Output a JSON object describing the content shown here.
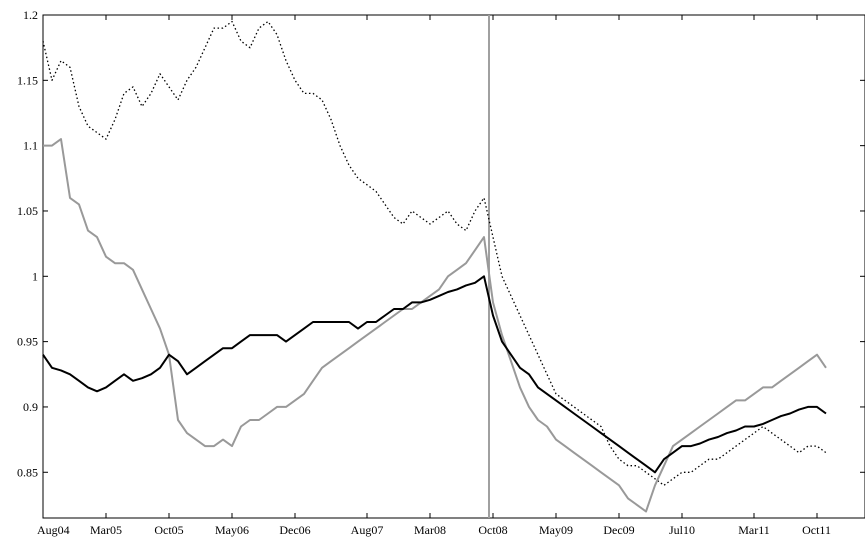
{
  "chart_data": {
    "type": "line",
    "title": "",
    "xlabel": "",
    "ylabel": "",
    "x_ticks": [
      "Aug04",
      "Mar05",
      "Oct05",
      "May06",
      "Dec06",
      "Aug07",
      "Mar08",
      "Oct08",
      "May09",
      "Dec09",
      "Jul10",
      "Mar11",
      "Oct11"
    ],
    "y_ticks": [
      "0.85",
      "0.9",
      "0.95",
      "1",
      "1.05",
      "1.1",
      "1.15",
      "1.2"
    ],
    "ylim": [
      0.815,
      1.2
    ],
    "grid": false,
    "legend": "none",
    "vertical_marker": {
      "x": "Sep08",
      "color": "#a0a0a0"
    },
    "series": [
      {
        "style": "dotted",
        "color": "#000000",
        "x": [
          "Aug04",
          "Sep04",
          "Oct04",
          "Nov04",
          "Dec04",
          "Jan05",
          "Feb05",
          "Mar05",
          "Apr05",
          "May05",
          "Jun05",
          "Jul05",
          "Aug05",
          "Sep05",
          "Oct05",
          "Nov05",
          "Dec05",
          "Jan06",
          "Feb06",
          "Mar06",
          "Apr06",
          "May06",
          "Jun06",
          "Jul06",
          "Aug06",
          "Sep06",
          "Oct06",
          "Nov06",
          "Dec06",
          "Jan07",
          "Feb07",
          "Mar07",
          "Apr07",
          "May07",
          "Jun07",
          "Jul07",
          "Aug07",
          "Sep07",
          "Oct07",
          "Nov07",
          "Dec07",
          "Jan08",
          "Feb08",
          "Mar08",
          "Apr08",
          "May08",
          "Jun08",
          "Jul08",
          "Aug08",
          "Sep08",
          "Oct08",
          "Nov08",
          "Dec08",
          "Jan09",
          "Feb09",
          "Mar09",
          "Apr09",
          "May09",
          "Jun09",
          "Jul09",
          "Aug09",
          "Sep09",
          "Oct09",
          "Nov09",
          "Dec09",
          "Jan10",
          "Feb10",
          "Mar10",
          "Apr10",
          "May10",
          "Jun10",
          "Jul10",
          "Aug10",
          "Sep10",
          "Oct10",
          "Nov10",
          "Dec10",
          "Jan11",
          "Feb11",
          "Mar11",
          "Apr11",
          "May11",
          "Jun11",
          "Jul11",
          "Aug11",
          "Sep11",
          "Oct11",
          "Nov11"
        ],
        "y": [
          1.18,
          1.15,
          1.165,
          1.16,
          1.13,
          1.115,
          1.11,
          1.105,
          1.12,
          1.14,
          1.145,
          1.13,
          1.14,
          1.155,
          1.145,
          1.135,
          1.15,
          1.16,
          1.175,
          1.19,
          1.19,
          1.195,
          1.18,
          1.175,
          1.19,
          1.195,
          1.185,
          1.165,
          1.15,
          1.14,
          1.14,
          1.135,
          1.12,
          1.1,
          1.085,
          1.075,
          1.07,
          1.065,
          1.055,
          1.045,
          1.04,
          1.05,
          1.045,
          1.04,
          1.045,
          1.05,
          1.04,
          1.035,
          1.05,
          1.06,
          1.03,
          1.0,
          0.985,
          0.97,
          0.955,
          0.94,
          0.925,
          0.91,
          0.905,
          0.9,
          0.895,
          0.89,
          0.885,
          0.87,
          0.86,
          0.855,
          0.855,
          0.85,
          0.845,
          0.84,
          0.845,
          0.85,
          0.85,
          0.855,
          0.86,
          0.86,
          0.865,
          0.87,
          0.875,
          0.88,
          0.885,
          0.88,
          0.875,
          0.87,
          0.865,
          0.87,
          0.87,
          0.865
        ]
      },
      {
        "style": "solid",
        "color": "#999999",
        "x": [
          "Aug04",
          "Sep04",
          "Oct04",
          "Nov04",
          "Dec04",
          "Jan05",
          "Feb05",
          "Mar05",
          "Apr05",
          "May05",
          "Jun05",
          "Jul05",
          "Aug05",
          "Sep05",
          "Oct05",
          "Nov05",
          "Dec05",
          "Jan06",
          "Feb06",
          "Mar06",
          "Apr06",
          "May06",
          "Jun06",
          "Jul06",
          "Aug06",
          "Sep06",
          "Oct06",
          "Nov06",
          "Dec06",
          "Jan07",
          "Feb07",
          "Mar07",
          "Apr07",
          "May07",
          "Jun07",
          "Jul07",
          "Aug07",
          "Sep07",
          "Oct07",
          "Nov07",
          "Dec07",
          "Jan08",
          "Feb08",
          "Mar08",
          "Apr08",
          "May08",
          "Jun08",
          "Jul08",
          "Aug08",
          "Sep08",
          "Oct08",
          "Nov08",
          "Dec08",
          "Jan09",
          "Feb09",
          "Mar09",
          "Apr09",
          "May09",
          "Jun09",
          "Jul09",
          "Aug09",
          "Sep09",
          "Oct09",
          "Nov09",
          "Dec09",
          "Jan10",
          "Feb10",
          "Mar10",
          "Apr10",
          "May10",
          "Jun10",
          "Jul10",
          "Aug10",
          "Sep10",
          "Oct10",
          "Nov10",
          "Dec10",
          "Jan11",
          "Feb11",
          "Mar11",
          "Apr11",
          "May11",
          "Jun11",
          "Jul11",
          "Aug11",
          "Sep11",
          "Oct11",
          "Nov11"
        ],
        "y": [
          1.1,
          1.1,
          1.105,
          1.06,
          1.055,
          1.035,
          1.03,
          1.015,
          1.01,
          1.01,
          1.005,
          0.99,
          0.975,
          0.96,
          0.94,
          0.89,
          0.88,
          0.875,
          0.87,
          0.87,
          0.875,
          0.87,
          0.885,
          0.89,
          0.89,
          0.895,
          0.9,
          0.9,
          0.905,
          0.91,
          0.92,
          0.93,
          0.935,
          0.94,
          0.945,
          0.95,
          0.955,
          0.96,
          0.965,
          0.97,
          0.975,
          0.975,
          0.98,
          0.985,
          0.99,
          1.0,
          1.005,
          1.01,
          1.02,
          1.03,
          0.98,
          0.955,
          0.935,
          0.915,
          0.9,
          0.89,
          0.885,
          0.875,
          0.87,
          0.865,
          0.86,
          0.855,
          0.85,
          0.845,
          0.84,
          0.83,
          0.825,
          0.82,
          0.84,
          0.855,
          0.87,
          0.875,
          0.88,
          0.885,
          0.89,
          0.895,
          0.9,
          0.905,
          0.905,
          0.91,
          0.915,
          0.915,
          0.92,
          0.925,
          0.93,
          0.935,
          0.94,
          0.93
        ]
      },
      {
        "style": "solid",
        "color": "#000000",
        "x": [
          "Aug04",
          "Sep04",
          "Oct04",
          "Nov04",
          "Dec04",
          "Jan05",
          "Feb05",
          "Mar05",
          "Apr05",
          "May05",
          "Jun05",
          "Jul05",
          "Aug05",
          "Sep05",
          "Oct05",
          "Nov05",
          "Dec05",
          "Jan06",
          "Feb06",
          "Mar06",
          "Apr06",
          "May06",
          "Jun06",
          "Jul06",
          "Aug06",
          "Sep06",
          "Oct06",
          "Nov06",
          "Dec06",
          "Jan07",
          "Feb07",
          "Mar07",
          "Apr07",
          "May07",
          "Jun07",
          "Jul07",
          "Aug07",
          "Sep07",
          "Oct07",
          "Nov07",
          "Dec07",
          "Jan08",
          "Feb08",
          "Mar08",
          "Apr08",
          "May08",
          "Jun08",
          "Jul08",
          "Aug08",
          "Sep08",
          "Oct08",
          "Nov08",
          "Dec08",
          "Jan09",
          "Feb09",
          "Mar09",
          "Apr09",
          "May09",
          "Jun09",
          "Jul09",
          "Aug09",
          "Sep09",
          "Oct09",
          "Nov09",
          "Dec09",
          "Jan10",
          "Feb10",
          "Mar10",
          "Apr10",
          "May10",
          "Jun10",
          "Jul10",
          "Aug10",
          "Sep10",
          "Oct10",
          "Nov10",
          "Dec10",
          "Jan11",
          "Feb11",
          "Mar11",
          "Apr11",
          "May11",
          "Jun11",
          "Jul11",
          "Aug11",
          "Sep11",
          "Oct11",
          "Nov11"
        ],
        "y": [
          0.94,
          0.93,
          0.928,
          0.925,
          0.92,
          0.915,
          0.912,
          0.915,
          0.92,
          0.925,
          0.92,
          0.922,
          0.925,
          0.93,
          0.94,
          0.935,
          0.925,
          0.93,
          0.935,
          0.94,
          0.945,
          0.945,
          0.95,
          0.955,
          0.955,
          0.955,
          0.955,
          0.95,
          0.955,
          0.96,
          0.965,
          0.965,
          0.965,
          0.965,
          0.965,
          0.96,
          0.965,
          0.965,
          0.97,
          0.975,
          0.975,
          0.98,
          0.98,
          0.982,
          0.985,
          0.988,
          0.99,
          0.993,
          0.995,
          1.0,
          0.97,
          0.95,
          0.94,
          0.93,
          0.925,
          0.915,
          0.91,
          0.905,
          0.9,
          0.895,
          0.89,
          0.885,
          0.88,
          0.875,
          0.87,
          0.865,
          0.86,
          0.855,
          0.85,
          0.86,
          0.865,
          0.87,
          0.87,
          0.872,
          0.875,
          0.877,
          0.88,
          0.882,
          0.885,
          0.885,
          0.887,
          0.89,
          0.893,
          0.895,
          0.898,
          0.9,
          0.9,
          0.895
        ]
      }
    ]
  }
}
